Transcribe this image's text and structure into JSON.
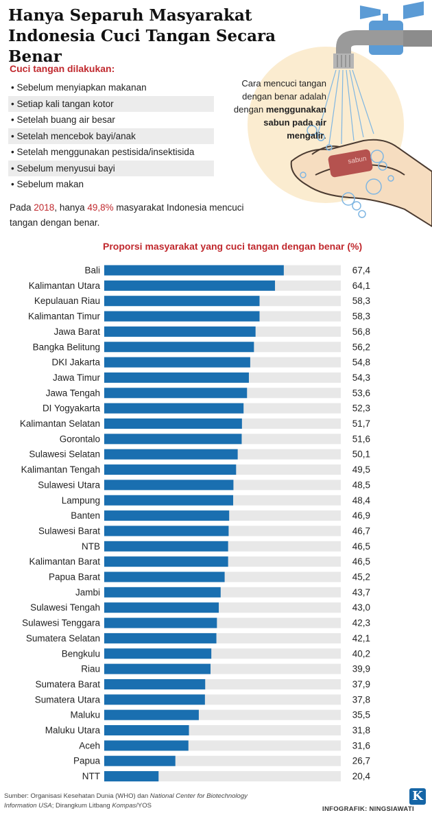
{
  "title": "Hanya Separuh Masyarakat Indonesia Cuci Tangan Secara Benar",
  "caption": {
    "part1": "Cara mencuci tangan dengan benar adalah dengan ",
    "bold": "menggunakan sabun pada air mengalir",
    "part2": "."
  },
  "soap_label": "sabun",
  "list_heading": "Cuci tangan dilakukan:",
  "occasions": [
    "Sebelum menyiapkan makanan",
    "Setiap kali tangan kotor",
    "Setelah buang air besar",
    "Setelah mencebok bayi/anak",
    "Setelah menggunakan pestisida/insektisida",
    "Sebelum menyusui bayi",
    "Sebelum makan"
  ],
  "summary": {
    "prefix": "Pada ",
    "year": "2018",
    "middle": ", hanya ",
    "pct": "49,8%",
    "suffix": " masyarakat Indonesia mencuci tangan dengan benar."
  },
  "chart_data": {
    "type": "bar",
    "orientation": "horizontal",
    "title": "Proporsi masyarakat yang cuci tangan dengan benar (%)",
    "xlim": [
      0,
      100
    ],
    "bar_color": "#1a6fb0",
    "track_color": "#e8e8e8",
    "categories": [
      "Bali",
      "Kalimantan Utara",
      "Kepulauan Riau",
      "Kalimantan Timur",
      "Jawa Barat",
      "Bangka Belitung",
      "DKI Jakarta",
      "Jawa Timur",
      "Jawa Tengah",
      "DI Yogyakarta",
      "Kalimantan Selatan",
      "Gorontalo",
      "Sulawesi Selatan",
      "Kalimantan Tengah",
      "Sulawesi Utara",
      "Lampung",
      "Banten",
      "Sulawesi Barat",
      "NTB",
      "Kalimantan Barat",
      "Papua Barat",
      "Jambi",
      "Sulawesi Tengah",
      "Sulawesi Tenggara",
      "Sumatera Selatan",
      "Bengkulu",
      "Riau",
      "Sumatera Barat",
      "Sumatera Utara",
      "Maluku",
      "Maluku Utara",
      "Aceh",
      "Papua",
      "NTT"
    ],
    "values": [
      67.4,
      64.1,
      58.3,
      58.3,
      56.8,
      56.2,
      54.8,
      54.3,
      53.6,
      52.3,
      51.7,
      51.6,
      50.1,
      49.5,
      48.5,
      48.4,
      46.9,
      46.7,
      46.5,
      46.5,
      45.2,
      43.7,
      43.0,
      42.3,
      42.1,
      40.2,
      39.9,
      37.9,
      37.8,
      35.5,
      31.8,
      31.6,
      26.7,
      20.4
    ],
    "value_labels": [
      "67,4",
      "64,1",
      "58,3",
      "58,3",
      "56,8",
      "56,2",
      "54,8",
      "54,3",
      "53,6",
      "52,3",
      "51,7",
      "51,6",
      "50,1",
      "49,5",
      "48,5",
      "48,4",
      "46,9",
      "46,7",
      "46,5",
      "46,5",
      "45,2",
      "43,7",
      "43,0",
      "42,3",
      "42,1",
      "40,2",
      "39,9",
      "37,9",
      "37,8",
      "35,5",
      "31,8",
      "31,6",
      "26,7",
      "20,4"
    ]
  },
  "footer": {
    "source_prefix": "Sumber: Organisasi Kesehatan Dunia (WHO) dan ",
    "source_italic": "National Center for Biotechnology Information USA",
    "source_middle": "; Dirangkum Litbang ",
    "source_italic2": "Kompas",
    "source_suffix": "/YOS",
    "credit": "INFOGRAFIK: NINGSIAWATI",
    "logo_letter": "K"
  }
}
